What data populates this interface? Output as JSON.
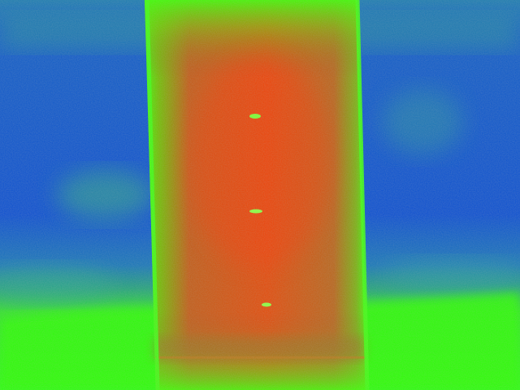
{
  "image": {
    "kind": "thermal-false-color",
    "palette": {
      "cold": "#0b4fd0",
      "cool": "#1f8f9a",
      "mid": "#3aff00",
      "warm": "#a86a1a",
      "hot": "#ff3800"
    },
    "subject": "warm-vertical-panel-with-three-bright-spots"
  }
}
